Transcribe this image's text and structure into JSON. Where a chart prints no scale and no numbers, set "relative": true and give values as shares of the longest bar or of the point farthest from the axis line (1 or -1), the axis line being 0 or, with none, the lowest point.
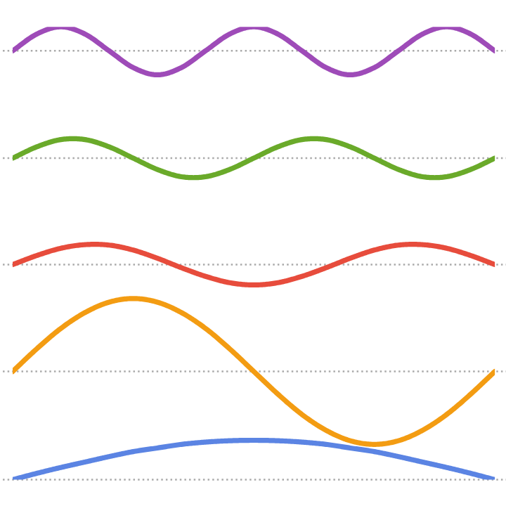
{
  "chart_data": {
    "type": "line",
    "relative": true,
    "categories": [
      null,
      null,
      null,
      null,
      null,
      null,
      null,
      null,
      null,
      null,
      null,
      null,
      null,
      null,
      null,
      null,
      null,
      null,
      null,
      null,
      null
    ],
    "series": [
      {
        "color": "#9e4bb8",
        "values": [
          0.947,
          0.984,
          1,
          0.984,
          0.947,
          0.91,
          0.894,
          0.91,
          0.947,
          0.984,
          1,
          0.984,
          0.947,
          0.91,
          0.894,
          0.91,
          0.947,
          0.984,
          1,
          0.984,
          0.947
        ]
      },
      {
        "color": "#6aaa2a",
        "values": [
          0.71,
          0.735,
          0.751,
          0.751,
          0.735,
          0.71,
          0.685,
          0.669,
          0.669,
          0.685,
          0.71,
          0.735,
          0.751,
          0.751,
          0.735,
          0.71,
          0.685,
          0.669,
          0.669,
          0.685,
          0.71
        ]
      },
      {
        "color": "#e74c3c",
        "values": [
          0.475,
          0.495,
          0.511,
          0.519,
          0.518,
          0.507,
          0.489,
          0.468,
          0.449,
          0.435,
          0.43,
          0.435,
          0.449,
          0.468,
          0.489,
          0.507,
          0.518,
          0.519,
          0.511,
          0.495,
          0.475
        ]
      },
      {
        "color": "#f39c12",
        "values": [
          0.239,
          0.289,
          0.334,
          0.369,
          0.392,
          0.4,
          0.392,
          0.369,
          0.334,
          0.289,
          0.239,
          0.189,
          0.144,
          0.109,
          0.086,
          0.078,
          0.086,
          0.109,
          0.144,
          0.189,
          0.239
        ]
      },
      {
        "color": "#5b84e3",
        "values": [
          0,
          0.014,
          0.027,
          0.039,
          0.051,
          0.062,
          0.07,
          0.078,
          0.083,
          0.086,
          0.087,
          0.086,
          0.083,
          0.078,
          0.07,
          0.062,
          0.051,
          0.039,
          0.027,
          0.014,
          0
        ]
      }
    ],
    "ref_lines": [
      {
        "axis": "y",
        "value": 0.947,
        "color": "#aaaaaa",
        "line_style": "dotted"
      },
      {
        "axis": "y",
        "value": 0.71,
        "color": "#aaaaaa",
        "line_style": "dotted"
      },
      {
        "axis": "y",
        "value": 0.475,
        "color": "#aaaaaa",
        "line_style": "dotted"
      },
      {
        "axis": "y",
        "value": 0.239,
        "color": "#aaaaaa",
        "line_style": "dotted"
      },
      {
        "axis": "y",
        "value": 0,
        "color": "#aaaaaa",
        "line_style": "dotted"
      }
    ]
  }
}
